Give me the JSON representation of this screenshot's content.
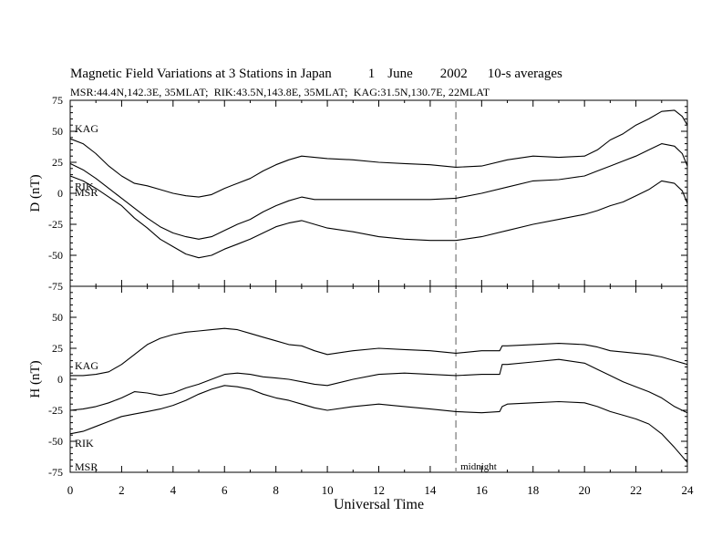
{
  "chart_data": {
    "type": "line",
    "title_parts": [
      "Magnetic Field Variations at 3 Stations in Japan",
      "1",
      "June",
      "2002",
      "10-s averages"
    ],
    "subtitle": "MSR:44.4N,142.3E, 35MLAT;  RIK:43.5N,143.8E, 35MLAT;  KAG:31.5N,130.7E, 22MLAT",
    "xlabel": "Universal Time",
    "xlim": [
      0,
      24
    ],
    "x_ticks": [
      "0",
      "2",
      "4",
      "6",
      "8",
      "10",
      "12",
      "14",
      "16",
      "18",
      "20",
      "22",
      "24"
    ],
    "annotation": {
      "text": "midnight",
      "x": 15,
      "style": "dashed"
    },
    "panels": [
      {
        "ylabel": "D (nT)",
        "ylim": [
          -75,
          75
        ],
        "y_ticks": [
          "75",
          "50",
          "25",
          "0",
          "-25",
          "-50",
          "-75"
        ],
        "series": [
          {
            "name": "KAG",
            "x": [
              0,
              0.5,
              1,
              1.5,
              2,
              2.5,
              3,
              3.5,
              4,
              4.5,
              5,
              5.5,
              6,
              6.5,
              7,
              7.5,
              8,
              8.5,
              9,
              9.5,
              10,
              11,
              12,
              13,
              14,
              15,
              16,
              17,
              18,
              19,
              20,
              20.5,
              21,
              21.5,
              22,
              22.5,
              23,
              23.5,
              23.8,
              24
            ],
            "y": [
              44,
              40,
              32,
              22,
              14,
              8,
              6,
              3,
              0,
              -2,
              -3,
              -1,
              4,
              8,
              12,
              18,
              23,
              27,
              30,
              29,
              28,
              27,
              25,
              24,
              23,
              21,
              22,
              27,
              30,
              29,
              30,
              35,
              43,
              48,
              55,
              60,
              66,
              67,
              62,
              55
            ]
          },
          {
            "name": "RIK",
            "x": [
              0,
              0.5,
              1,
              1.5,
              2,
              2.5,
              3,
              3.5,
              4,
              4.5,
              5,
              5.5,
              6,
              6.5,
              7,
              7.5,
              8,
              8.5,
              9,
              9.5,
              10,
              11,
              12,
              13,
              14,
              15,
              16,
              17,
              18,
              19,
              20,
              20.5,
              21,
              21.5,
              22,
              22.5,
              23,
              23.5,
              23.8,
              24
            ],
            "y": [
              24,
              19,
              12,
              4,
              -4,
              -12,
              -20,
              -27,
              -32,
              -35,
              -37,
              -35,
              -30,
              -25,
              -21,
              -15,
              -10,
              -6,
              -3,
              -5,
              -5,
              -5,
              -5,
              -5,
              -5,
              -4,
              0,
              5,
              10,
              11,
              14,
              18,
              22,
              26,
              30,
              35,
              40,
              38,
              32,
              22
            ]
          },
          {
            "name": "MSR",
            "x": [
              0,
              0.5,
              1,
              1.5,
              2,
              2.5,
              3,
              3.5,
              4,
              4.5,
              5,
              5.5,
              6,
              6.5,
              7,
              7.5,
              8,
              8.5,
              9,
              9.5,
              10,
              11,
              12,
              13,
              14,
              15,
              16,
              17,
              18,
              19,
              20,
              20.5,
              21,
              21.5,
              22,
              22.5,
              23,
              23.5,
              23.8,
              24
            ],
            "y": [
              14,
              10,
              4,
              -3,
              -10,
              -20,
              -28,
              -37,
              -43,
              -49,
              -52,
              -50,
              -45,
              -41,
              -37,
              -32,
              -27,
              -24,
              -22,
              -25,
              -28,
              -31,
              -35,
              -37,
              -38,
              -38,
              -35,
              -30,
              -25,
              -21,
              -17,
              -14,
              -10,
              -7,
              -2,
              3,
              10,
              8,
              2,
              -8
            ]
          }
        ]
      },
      {
        "ylabel": "H (nT)",
        "ylim": [
          -75,
          75
        ],
        "y_ticks": [
          "75",
          "50",
          "25",
          "0",
          "-25",
          "-50",
          "-75"
        ],
        "series": [
          {
            "name": "KAG",
            "x": [
              0,
              0.5,
              1,
              1.5,
              2,
              2.5,
              3,
              3.5,
              4,
              4.5,
              5,
              5.5,
              6,
              6.5,
              7,
              7.5,
              8,
              8.5,
              9,
              9.5,
              10,
              11,
              12,
              13,
              14,
              15,
              16,
              16.7,
              16.8,
              17,
              18,
              19,
              20,
              20.5,
              21,
              21.5,
              22,
              22.5,
              23,
              23.5,
              24
            ],
            "y": [
              3,
              3,
              4,
              6,
              12,
              20,
              28,
              33,
              36,
              38,
              39,
              40,
              41,
              40,
              37,
              34,
              31,
              28,
              27,
              23,
              20,
              23,
              25,
              24,
              23,
              21,
              23,
              23,
              27,
              27,
              28,
              29,
              28,
              26,
              23,
              22,
              21,
              20,
              18,
              15,
              12
            ]
          },
          {
            "name": "RIK",
            "x": [
              0,
              0.5,
              1,
              1.5,
              2,
              2.5,
              3,
              3.5,
              4,
              4.5,
              5,
              5.5,
              6,
              6.5,
              7,
              7.5,
              8,
              8.5,
              9,
              9.5,
              10,
              11,
              12,
              13,
              14,
              15,
              16,
              16.7,
              16.8,
              17,
              18,
              19,
              20,
              20.5,
              21,
              21.5,
              22,
              22.5,
              23,
              23.5,
              24
            ],
            "y": [
              -25,
              -24,
              -22,
              -19,
              -15,
              -10,
              -11,
              -13,
              -11,
              -7,
              -4,
              0,
              4,
              5,
              4,
              2,
              1,
              0,
              -2,
              -4,
              -5,
              0,
              4,
              5,
              4,
              3,
              4,
              4,
              12,
              12,
              14,
              16,
              13,
              8,
              3,
              -2,
              -6,
              -10,
              -15,
              -22,
              -27
            ]
          },
          {
            "name": "MSR",
            "x": [
              0,
              0.5,
              1,
              1.5,
              2,
              2.5,
              3,
              3.5,
              4,
              4.5,
              5,
              5.5,
              6,
              6.5,
              7,
              7.5,
              8,
              8.5,
              9,
              9.5,
              10,
              11,
              12,
              13,
              14,
              15,
              16,
              16.7,
              16.8,
              17,
              18,
              19,
              20,
              20.5,
              21,
              21.5,
              22,
              22.5,
              23,
              23.5,
              24
            ],
            "y": [
              -44,
              -42,
              -38,
              -34,
              -30,
              -28,
              -26,
              -24,
              -21,
              -17,
              -12,
              -8,
              -5,
              -6,
              -8,
              -12,
              -15,
              -17,
              -20,
              -23,
              -25,
              -22,
              -20,
              -22,
              -24,
              -26,
              -27,
              -26,
              -22,
              -20,
              -19,
              -18,
              -19,
              -22,
              -26,
              -29,
              -32,
              -36,
              -44,
              -55,
              -67
            ]
          }
        ]
      }
    ]
  }
}
